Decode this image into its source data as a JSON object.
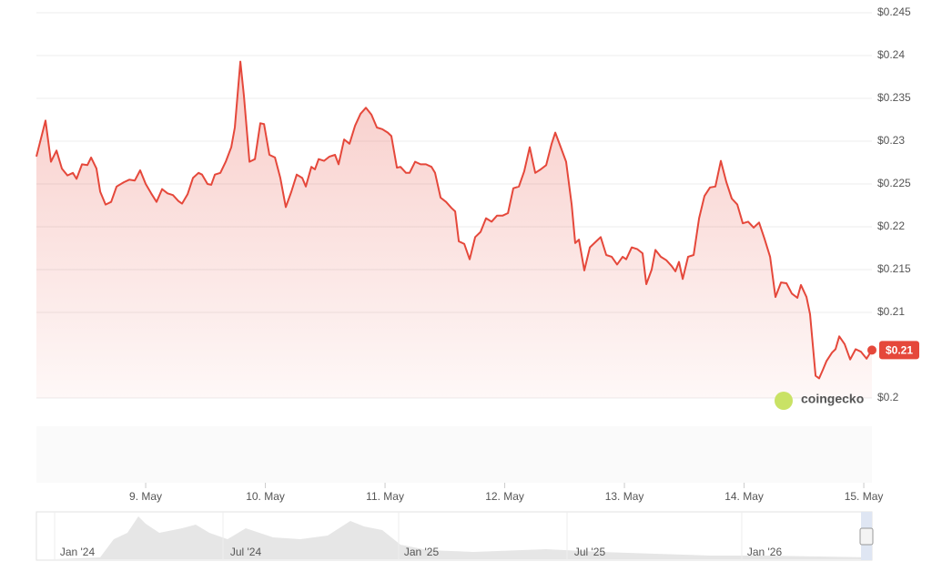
{
  "chart_data": {
    "type": "line",
    "color": "#e5483b",
    "grid": true,
    "watermark": "coingecko",
    "current_label": "$0.21",
    "xlim": [
      8.087,
      15.068
    ],
    "ylim": [
      0.2,
      0.245
    ],
    "yticks": [
      {
        "value": 0.2,
        "label": "$0.2"
      },
      {
        "value": 0.21,
        "label": "$0.21"
      },
      {
        "value": 0.215,
        "label": "$0.215"
      },
      {
        "value": 0.22,
        "label": "$0.22"
      },
      {
        "value": 0.225,
        "label": "$0.225"
      },
      {
        "value": 0.23,
        "label": "$0.23"
      },
      {
        "value": 0.235,
        "label": "$0.235"
      },
      {
        "value": 0.24,
        "label": "$0.24"
      },
      {
        "value": 0.245,
        "label": "$0.245"
      }
    ],
    "xticks": [
      {
        "value": 9,
        "label": "9. May"
      },
      {
        "value": 10,
        "label": "10. May"
      },
      {
        "value": 11,
        "label": "11. May"
      },
      {
        "value": 12,
        "label": "12. May"
      },
      {
        "value": 13,
        "label": "13. May"
      },
      {
        "value": 14,
        "label": "14. May"
      },
      {
        "value": 15,
        "label": "15. May"
      }
    ],
    "x": [
      8.087,
      8.163,
      8.209,
      8.255,
      8.3,
      8.346,
      8.392,
      8.422,
      8.468,
      8.513,
      8.544,
      8.589,
      8.62,
      8.665,
      8.711,
      8.757,
      8.817,
      8.863,
      8.909,
      8.954,
      9.0,
      9.046,
      9.091,
      9.137,
      9.183,
      9.228,
      9.274,
      9.304,
      9.35,
      9.395,
      9.441,
      9.471,
      9.517,
      9.548,
      9.578,
      9.624,
      9.669,
      9.715,
      9.745,
      9.791,
      9.821,
      9.867,
      9.913,
      9.958,
      9.989,
      10.034,
      10.08,
      10.125,
      10.171,
      10.217,
      10.262,
      10.308,
      10.338,
      10.384,
      10.414,
      10.445,
      10.49,
      10.536,
      10.582,
      10.612,
      10.658,
      10.703,
      10.749,
      10.795,
      10.84,
      10.886,
      10.932,
      10.977,
      11.023,
      11.053,
      11.099,
      11.129,
      11.175,
      11.205,
      11.251,
      11.297,
      11.342,
      11.388,
      11.418,
      11.464,
      11.51,
      11.555,
      11.586,
      11.616,
      11.662,
      11.707,
      11.753,
      11.798,
      11.844,
      11.89,
      11.935,
      11.981,
      12.027,
      12.072,
      12.118,
      12.163,
      12.209,
      12.255,
      12.3,
      12.346,
      12.392,
      12.422,
      12.468,
      12.513,
      12.559,
      12.589,
      12.62,
      12.665,
      12.711,
      12.757,
      12.802,
      12.848,
      12.894,
      12.939,
      12.985,
      13.015,
      13.061,
      13.106,
      13.152,
      13.183,
      13.228,
      13.259,
      13.304,
      13.35,
      13.395,
      13.426,
      13.456,
      13.487,
      13.532,
      13.578,
      13.624,
      13.669,
      13.715,
      13.76,
      13.806,
      13.852,
      13.897,
      13.943,
      13.989,
      14.034,
      14.08,
      14.125,
      14.171,
      14.217,
      14.262,
      14.308,
      14.354,
      14.399,
      14.445,
      14.475,
      14.521,
      14.551,
      14.597,
      14.627,
      14.658,
      14.688,
      14.734,
      14.764,
      14.795,
      14.84,
      14.886,
      14.932,
      14.977,
      15.023,
      15.068
    ],
    "values": [
      0.2282,
      0.2324,
      0.2276,
      0.2289,
      0.2268,
      0.226,
      0.2263,
      0.2256,
      0.2273,
      0.2272,
      0.2281,
      0.2268,
      0.2241,
      0.2226,
      0.2229,
      0.2247,
      0.2252,
      0.2255,
      0.2254,
      0.2266,
      0.225,
      0.2239,
      0.2229,
      0.2244,
      0.2239,
      0.2237,
      0.223,
      0.2227,
      0.2238,
      0.2257,
      0.2263,
      0.2261,
      0.225,
      0.2249,
      0.2261,
      0.2263,
      0.2276,
      0.2293,
      0.2316,
      0.2393,
      0.2353,
      0.2276,
      0.2279,
      0.2321,
      0.232,
      0.2284,
      0.2281,
      0.2257,
      0.2223,
      0.2241,
      0.2261,
      0.2257,
      0.2247,
      0.227,
      0.2267,
      0.2279,
      0.2277,
      0.2282,
      0.2284,
      0.2273,
      0.2302,
      0.2297,
      0.2318,
      0.2332,
      0.2339,
      0.2331,
      0.2316,
      0.2314,
      0.231,
      0.2306,
      0.2269,
      0.227,
      0.2263,
      0.2263,
      0.2276,
      0.2273,
      0.2273,
      0.227,
      0.2263,
      0.2234,
      0.2229,
      0.2222,
      0.2218,
      0.2183,
      0.218,
      0.2162,
      0.2188,
      0.2194,
      0.221,
      0.2206,
      0.2213,
      0.2213,
      0.2216,
      0.2245,
      0.2247,
      0.2265,
      0.2293,
      0.2263,
      0.2267,
      0.2272,
      0.2297,
      0.231,
      0.2293,
      0.2276,
      0.2226,
      0.2181,
      0.2185,
      0.2149,
      0.2176,
      0.2182,
      0.2188,
      0.2167,
      0.2165,
      0.2156,
      0.2165,
      0.2162,
      0.2176,
      0.2174,
      0.2169,
      0.2133,
      0.215,
      0.2173,
      0.2165,
      0.2161,
      0.2154,
      0.2148,
      0.2159,
      0.2139,
      0.2165,
      0.2167,
      0.221,
      0.2236,
      0.2246,
      0.2247,
      0.2277,
      0.2252,
      0.2233,
      0.2226,
      0.2204,
      0.2206,
      0.2199,
      0.2205,
      0.2186,
      0.2165,
      0.2118,
      0.2135,
      0.2134,
      0.2122,
      0.2117,
      0.2132,
      0.2118,
      0.2098,
      0.2026,
      0.2023,
      0.2033,
      0.2043,
      0.2053,
      0.2057,
      0.2072,
      0.2063,
      0.2045,
      0.2057,
      0.2054,
      0.2046,
      0.2056
    ],
    "navigator": {
      "labels": [
        "Jan '24",
        "Jul '24",
        "Jan '25",
        "Jul '25",
        "Jan '26"
      ]
    }
  }
}
